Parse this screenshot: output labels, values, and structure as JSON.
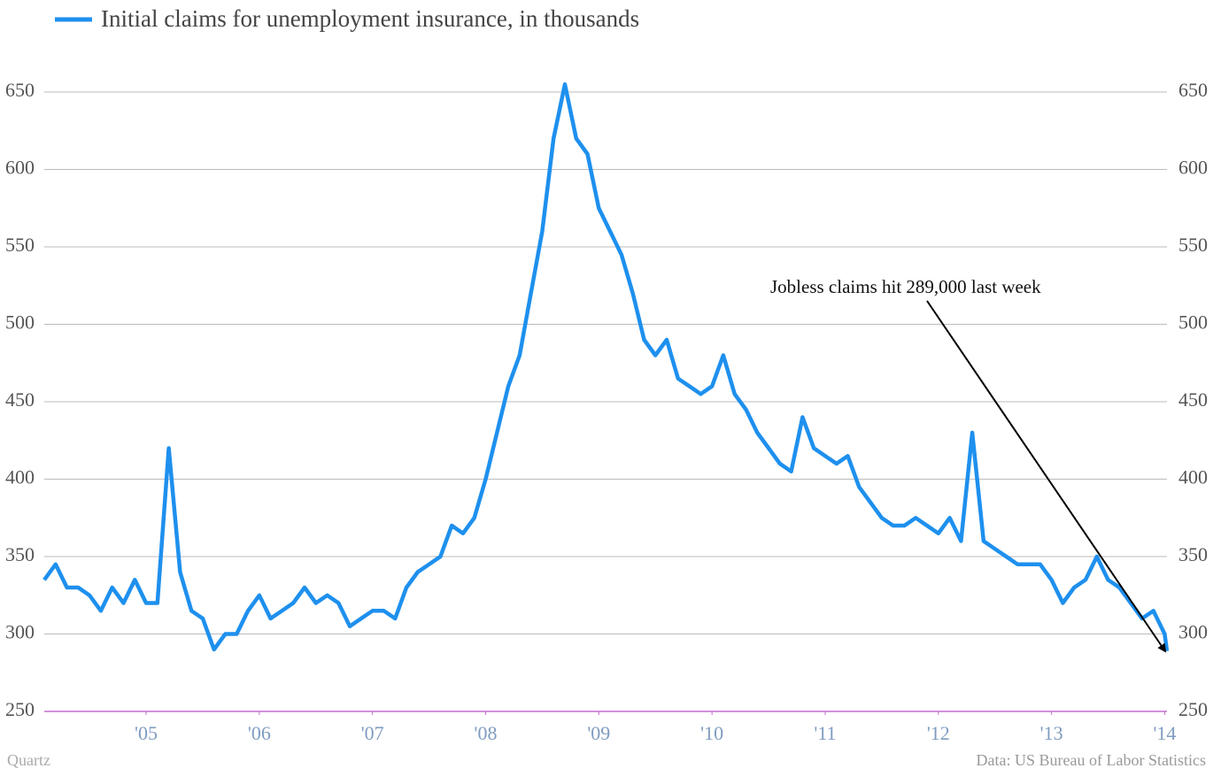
{
  "chart_data": {
    "type": "line",
    "series": [
      {
        "name": "Initial claims for unemployment insurance, in thousands",
        "color": "#1e90ee",
        "values": [
          335,
          345,
          330,
          330,
          325,
          315,
          330,
          320,
          335,
          320,
          320,
          420,
          340,
          315,
          310,
          290,
          300,
          300,
          315,
          325,
          310,
          315,
          320,
          330,
          320,
          325,
          320,
          305,
          310,
          315,
          315,
          310,
          330,
          340,
          345,
          350,
          370,
          365,
          375,
          400,
          430,
          460,
          480,
          520,
          560,
          620,
          655,
          620,
          610,
          575,
          560,
          545,
          520,
          490,
          480,
          490,
          465,
          460,
          455,
          460,
          480,
          455,
          445,
          430,
          420,
          410,
          405,
          440,
          420,
          415,
          410,
          415,
          395,
          385,
          375,
          370,
          370,
          375,
          370,
          365,
          375,
          360,
          430,
          360,
          355,
          350,
          345,
          345,
          345,
          335,
          320,
          330,
          335,
          350,
          335,
          330,
          320,
          310,
          315,
          300,
          289
        ]
      }
    ],
    "x": [
      2004.6,
      2004.7,
      2004.8,
      2004.9,
      2005.0,
      2005.1,
      2005.2,
      2005.3,
      2005.4,
      2005.5,
      2005.6,
      2005.7,
      2005.8,
      2005.9,
      2006.0,
      2006.1,
      2006.2,
      2006.3,
      2006.4,
      2006.5,
      2006.6,
      2006.7,
      2006.8,
      2006.9,
      2007.0,
      2007.1,
      2007.2,
      2007.3,
      2007.4,
      2007.5,
      2007.6,
      2007.7,
      2007.8,
      2007.9,
      2008.0,
      2008.1,
      2008.2,
      2008.3,
      2008.4,
      2008.5,
      2008.6,
      2008.7,
      2008.8,
      2008.9,
      2009.0,
      2009.1,
      2009.2,
      2009.3,
      2009.4,
      2009.5,
      2009.6,
      2009.7,
      2009.8,
      2009.9,
      2010.0,
      2010.1,
      2010.2,
      2010.3,
      2010.4,
      2010.5,
      2010.6,
      2010.7,
      2010.8,
      2010.9,
      2011.0,
      2011.1,
      2011.2,
      2011.3,
      2011.4,
      2011.5,
      2011.6,
      2011.7,
      2011.8,
      2011.9,
      2012.0,
      2012.1,
      2012.2,
      2012.3,
      2012.4,
      2012.5,
      2012.6,
      2012.7,
      2012.8,
      2012.9,
      2013.0,
      2013.1,
      2013.2,
      2013.3,
      2013.4,
      2013.5,
      2013.6,
      2013.7,
      2013.8,
      2013.9,
      2014.0,
      2014.1,
      2014.2,
      2014.3,
      2014.4,
      2014.5,
      2014.52
    ],
    "xlim": [
      2004.6,
      2014.52
    ],
    "xticks": [
      {
        "value": 2005.5,
        "label": "'05"
      },
      {
        "value": 2006.5,
        "label": "'06"
      },
      {
        "value": 2007.5,
        "label": "'07"
      },
      {
        "value": 2008.5,
        "label": "'08"
      },
      {
        "value": 2009.5,
        "label": "'09"
      },
      {
        "value": 2010.5,
        "label": "'10"
      },
      {
        "value": 2011.5,
        "label": "'11"
      },
      {
        "value": 2012.5,
        "label": "'12"
      },
      {
        "value": 2013.5,
        "label": "'13"
      },
      {
        "value": 2014.5,
        "label": "'14"
      }
    ],
    "ylim": [
      250,
      670
    ],
    "yticks": [
      250,
      300,
      350,
      400,
      450,
      500,
      550,
      600,
      650
    ],
    "grid": true,
    "annotation": "Jobless claims hit 289,000 last week",
    "credit": "Quartz",
    "source": "Data: US Bureau of Labor Statistics"
  }
}
